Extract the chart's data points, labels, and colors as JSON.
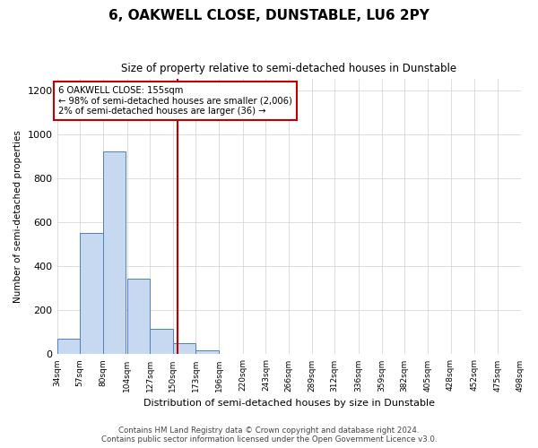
{
  "title": "6, OAKWELL CLOSE, DUNSTABLE, LU6 2PY",
  "subtitle": "Size of property relative to semi-detached houses in Dunstable",
  "xlabel": "Distribution of semi-detached houses by size in Dunstable",
  "ylabel": "Number of semi-detached properties",
  "annotation_line1": "6 OAKWELL CLOSE: 155sqm",
  "annotation_line2": "← 98% of semi-detached houses are smaller (2,006)",
  "annotation_line3": "2% of semi-detached houses are larger (36) →",
  "property_size": 155,
  "bin_edges": [
    34,
    57,
    80,
    104,
    127,
    150,
    173,
    196,
    220,
    243,
    266,
    289,
    312,
    336,
    359,
    382,
    405,
    428,
    452,
    475,
    498
  ],
  "bar_heights": [
    70,
    550,
    920,
    345,
    115,
    50,
    20,
    0,
    0,
    0,
    0,
    0,
    0,
    0,
    0,
    0,
    0,
    0,
    0,
    0
  ],
  "bar_color": "#c6d9f0",
  "bar_edge_color": "#4f81bd",
  "vline_color": "#c00000",
  "vline_x": 155,
  "annotation_box_edge_color": "#c00000",
  "grid_color": "#d0d0d0",
  "background_color": "#ffffff",
  "ylim": [
    0,
    1250
  ],
  "yticks": [
    0,
    200,
    400,
    600,
    800,
    1000,
    1200
  ],
  "footer_line1": "Contains HM Land Registry data © Crown copyright and database right 2024.",
  "footer_line2": "Contains public sector information licensed under the Open Government Licence v3.0."
}
